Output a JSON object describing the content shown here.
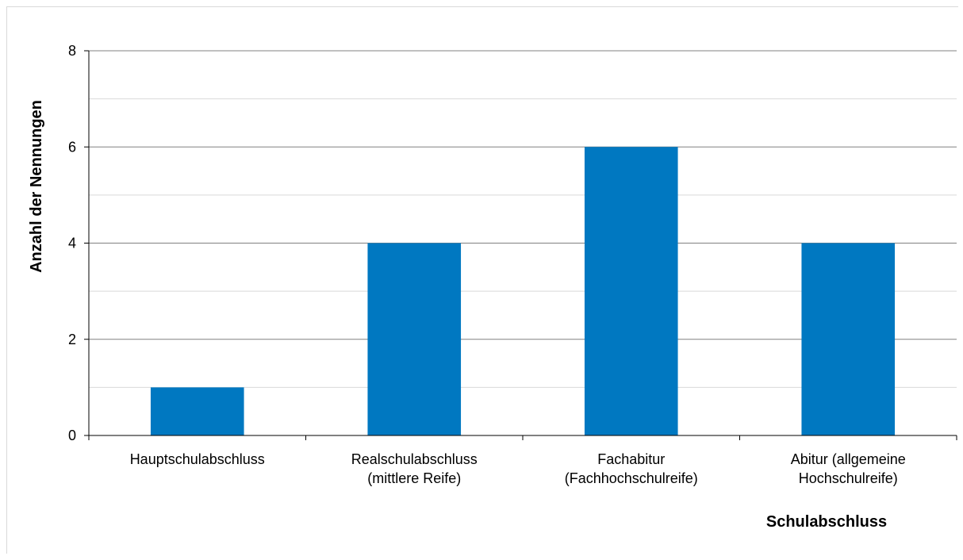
{
  "chart_data": {
    "type": "bar",
    "categories": [
      [
        "Hauptschulabschluss"
      ],
      [
        "Realschulabschluss",
        "(mittlere Reife)"
      ],
      [
        "Fachabitur",
        "(Fachhochschulreife)"
      ],
      [
        "Abitur (allgemeine",
        "Hochschulreife)"
      ]
    ],
    "values": [
      1,
      4,
      6,
      4
    ],
    "xlabel": "Schulabschluss",
    "ylabel": "Anzahl der Nennungen",
    "ylim": [
      0,
      8
    ],
    "yticks": [
      0,
      2,
      4,
      6,
      8
    ],
    "minor_gridlines": [
      1,
      3,
      5,
      7
    ],
    "grid": true,
    "legend": "none",
    "colors": {
      "bar": "#0078c1",
      "major_grid": "#808080",
      "minor_grid": "#d9d9d9",
      "axis": "#000000"
    }
  }
}
